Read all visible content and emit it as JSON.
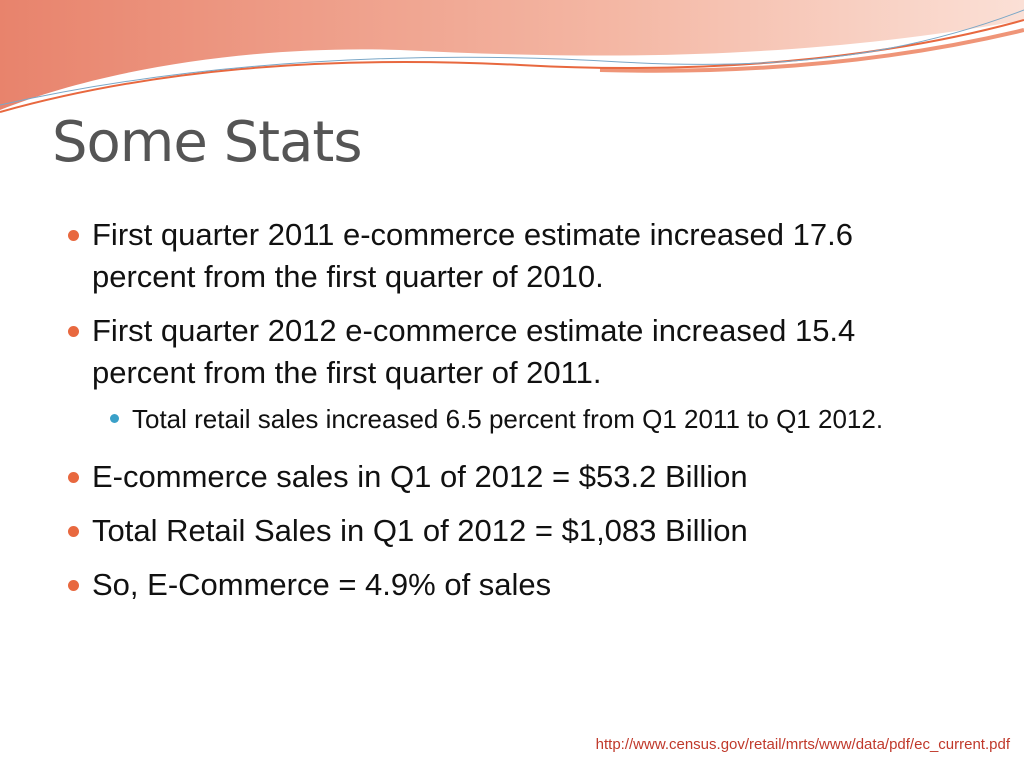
{
  "title": "Some Stats",
  "bullets": [
    {
      "text": "First quarter 2011 e-commerce estimate increased 17.6 percent from the first quarter of 2010."
    },
    {
      "text": "First quarter 2012 e-commerce estimate increased 15.4 percent from the first quarter of 2011.",
      "sub": [
        "Total retail sales increased 6.5 percent from Q1 2011 to Q1 2012."
      ]
    },
    {
      "text": "E-commerce sales in Q1 of 2012 = $53.2 Billion"
    },
    {
      "text": "Total Retail Sales in Q1 of 2012 = $1,083 Billion"
    },
    {
      "text": "So, E-Commerce = 4.9% of sales"
    }
  ],
  "source": "http://www.census.gov/retail/mrts/www/data/pdf/ec_current.pdf"
}
